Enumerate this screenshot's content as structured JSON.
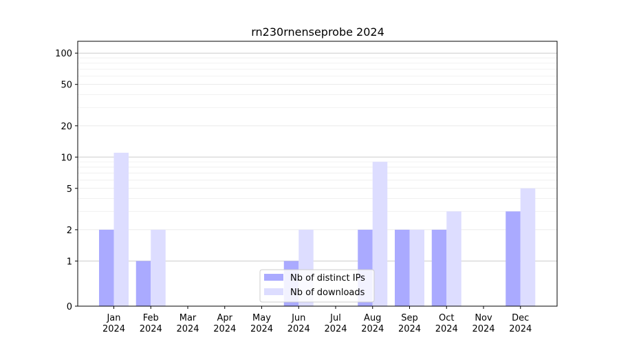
{
  "chart_data": {
    "type": "bar",
    "title": "rn230rnenseprobe 2024",
    "xlabel": "",
    "ylabel": "",
    "y_scale": "symlog",
    "yticks": [
      0,
      1,
      2,
      5,
      10,
      20,
      50,
      100
    ],
    "ylim": [
      0,
      130
    ],
    "grid": true,
    "legend_position": "lower center",
    "categories": [
      {
        "month": "Jan",
        "year": "2024"
      },
      {
        "month": "Feb",
        "year": "2024"
      },
      {
        "month": "Mar",
        "year": "2024"
      },
      {
        "month": "Apr",
        "year": "2024"
      },
      {
        "month": "May",
        "year": "2024"
      },
      {
        "month": "Jun",
        "year": "2024"
      },
      {
        "month": "Jul",
        "year": "2024"
      },
      {
        "month": "Aug",
        "year": "2024"
      },
      {
        "month": "Sep",
        "year": "2024"
      },
      {
        "month": "Oct",
        "year": "2024"
      },
      {
        "month": "Nov",
        "year": "2024"
      },
      {
        "month": "Dec",
        "year": "2024"
      }
    ],
    "series": [
      {
        "name": "Nb of distinct IPs",
        "color": "#aaaaff",
        "values": [
          2,
          1,
          0,
          0,
          0,
          1,
          0,
          2,
          2,
          2,
          0,
          3
        ]
      },
      {
        "name": "Nb of downloads",
        "color": "#ddddff",
        "values": [
          11,
          2,
          0,
          0,
          0,
          2,
          0,
          9,
          2,
          3,
          0,
          5
        ]
      }
    ]
  }
}
